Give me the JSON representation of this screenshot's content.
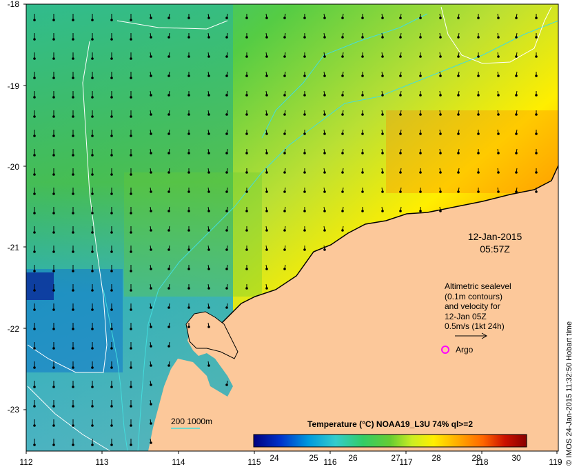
{
  "map": {
    "lon_ticks": [
      "112",
      "113",
      "114",
      "115",
      "116",
      "117",
      "118",
      "119"
    ],
    "lat_ticks": [
      "-18",
      "-19",
      "-20",
      "-21",
      "-22",
      "-23"
    ],
    "land_color": "#fcc89a",
    "sst_color_scale": [
      "#00007f",
      "#0033cc",
      "#0099dd",
      "#33cccc",
      "#33cc66",
      "#66cc33",
      "#ccee22",
      "#ffee00",
      "#ffaa00",
      "#ff6600",
      "#cc1100",
      "#880000"
    ]
  },
  "timestamp": {
    "date": "12-Jan-2015",
    "time": "05:57Z"
  },
  "legend": {
    "line1": "Altimetric sealevel",
    "line2": "(0.1m contours)",
    "line3": "and velocity for",
    "line4": "12-Jan 05Z",
    "scale_label": "0.5m/s (1kt 24h)",
    "argo_label": "Argo",
    "argo_color": "#ff00ff"
  },
  "bathymetry": {
    "label": "200  1000m",
    "color": "#44dddd"
  },
  "colorbar": {
    "title": "Temperature (°C) NOAA19_L3U 74% ql>=2",
    "ticks": [
      "24",
      "25",
      "26",
      "27",
      "28",
      "29",
      "30"
    ],
    "colors": [
      "#00007f",
      "#0033cc",
      "#0099dd",
      "#33cccc",
      "#33cc66",
      "#66cc33",
      "#ccee22",
      "#ffee00",
      "#ffaa00",
      "#ff6600",
      "#cc1100",
      "#880000"
    ]
  },
  "credit": "© IMOS 24-Jan-2015 11:32:50 Hobart time"
}
